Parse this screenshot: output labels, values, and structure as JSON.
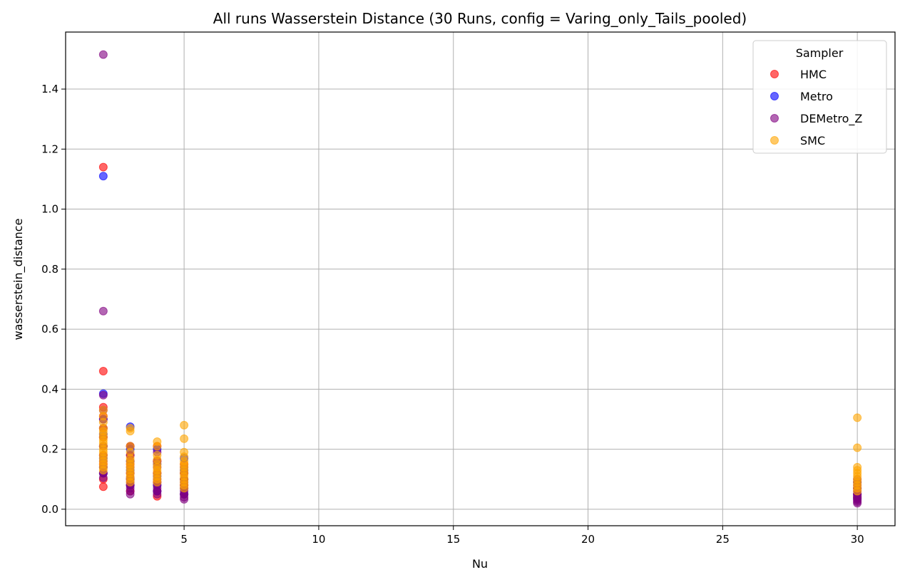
{
  "chart_data": {
    "type": "scatter",
    "title": "All runs Wasserstein Distance (30 Runs, config = Varing_only_Tails_pooled)",
    "xlabel": "Nu",
    "ylabel": "wasserstein_distance",
    "xlim": [
      0.6,
      31.4
    ],
    "ylim": [
      -0.055,
      1.59
    ],
    "xticks": [
      5,
      10,
      15,
      20,
      25,
      30
    ],
    "yticks": [
      0.0,
      0.2,
      0.4,
      0.6,
      0.8,
      1.0,
      1.2,
      1.4
    ],
    "ytick_labels": [
      "0.0",
      "0.2",
      "0.4",
      "0.6",
      "0.8",
      "1.0",
      "1.2",
      "1.4"
    ],
    "grid": true,
    "legend": {
      "title": "Sampler",
      "placement": "upper-right"
    },
    "series": [
      {
        "name": "HMC",
        "color": "#ff0000",
        "points": [
          [
            2,
            1.14
          ],
          [
            2,
            0.46
          ],
          [
            2,
            0.34
          ],
          [
            2,
            0.31
          ],
          [
            2,
            0.27
          ],
          [
            2,
            0.24
          ],
          [
            2,
            0.21
          ],
          [
            2,
            0.18
          ],
          [
            2,
            0.15
          ],
          [
            2,
            0.12
          ],
          [
            2,
            0.1
          ],
          [
            2,
            0.075
          ],
          [
            3,
            0.21
          ],
          [
            3,
            0.18
          ],
          [
            3,
            0.15
          ],
          [
            3,
            0.12
          ],
          [
            3,
            0.1
          ],
          [
            3,
            0.08
          ],
          [
            3,
            0.06
          ],
          [
            4,
            0.21
          ],
          [
            4,
            0.16
          ],
          [
            4,
            0.12
          ],
          [
            4,
            0.09
          ],
          [
            4,
            0.06
          ],
          [
            4,
            0.043
          ],
          [
            5,
            0.15
          ],
          [
            5,
            0.12
          ],
          [
            5,
            0.1
          ],
          [
            5,
            0.08
          ],
          [
            5,
            0.05
          ],
          [
            30,
            0.09
          ],
          [
            30,
            0.07
          ],
          [
            30,
            0.05
          ],
          [
            30,
            0.04
          ]
        ]
      },
      {
        "name": "Metro",
        "color": "#0000ff",
        "points": [
          [
            2,
            1.11
          ],
          [
            2,
            0.385
          ],
          [
            2,
            0.3
          ],
          [
            2,
            0.25
          ],
          [
            2,
            0.21
          ],
          [
            2,
            0.17
          ],
          [
            2,
            0.14
          ],
          [
            2,
            0.12
          ],
          [
            3,
            0.275
          ],
          [
            3,
            0.2
          ],
          [
            3,
            0.16
          ],
          [
            3,
            0.13
          ],
          [
            3,
            0.1
          ],
          [
            3,
            0.08
          ],
          [
            4,
            0.2
          ],
          [
            4,
            0.15
          ],
          [
            4,
            0.11
          ],
          [
            4,
            0.08
          ],
          [
            4,
            0.06
          ],
          [
            5,
            0.17
          ],
          [
            5,
            0.13
          ],
          [
            5,
            0.1
          ],
          [
            5,
            0.07
          ],
          [
            5,
            0.05
          ],
          [
            30,
            0.09
          ],
          [
            30,
            0.07
          ],
          [
            30,
            0.05
          ],
          [
            30,
            0.035
          ]
        ]
      },
      {
        "name": "DEMetro_Z",
        "color": "#800080",
        "points": [
          [
            2,
            1.515
          ],
          [
            2,
            0.66
          ],
          [
            2,
            0.38
          ],
          [
            2,
            0.33
          ],
          [
            2,
            0.3
          ],
          [
            2,
            0.27
          ],
          [
            2,
            0.24
          ],
          [
            2,
            0.21
          ],
          [
            2,
            0.18
          ],
          [
            2,
            0.16
          ],
          [
            2,
            0.14
          ],
          [
            2,
            0.12
          ],
          [
            2,
            0.105
          ],
          [
            3,
            0.21
          ],
          [
            3,
            0.18
          ],
          [
            3,
            0.16
          ],
          [
            3,
            0.14
          ],
          [
            3,
            0.12
          ],
          [
            3,
            0.105
          ],
          [
            3,
            0.09
          ],
          [
            3,
            0.08
          ],
          [
            3,
            0.07
          ],
          [
            3,
            0.06
          ],
          [
            3,
            0.05
          ],
          [
            4,
            0.19
          ],
          [
            4,
            0.16
          ],
          [
            4,
            0.14
          ],
          [
            4,
            0.12
          ],
          [
            4,
            0.1
          ],
          [
            4,
            0.09
          ],
          [
            4,
            0.08
          ],
          [
            4,
            0.07
          ],
          [
            4,
            0.06
          ],
          [
            4,
            0.05
          ],
          [
            5,
            0.14
          ],
          [
            5,
            0.12
          ],
          [
            5,
            0.1
          ],
          [
            5,
            0.09
          ],
          [
            5,
            0.08
          ],
          [
            5,
            0.07
          ],
          [
            5,
            0.06
          ],
          [
            5,
            0.05
          ],
          [
            5,
            0.04
          ],
          [
            5,
            0.033
          ],
          [
            30,
            0.1
          ],
          [
            30,
            0.08
          ],
          [
            30,
            0.07
          ],
          [
            30,
            0.06
          ],
          [
            30,
            0.05
          ],
          [
            30,
            0.045
          ],
          [
            30,
            0.04
          ],
          [
            30,
            0.035
          ],
          [
            30,
            0.03
          ],
          [
            30,
            0.025
          ],
          [
            30,
            0.02
          ]
        ]
      },
      {
        "name": "SMC",
        "color": "#ffa500",
        "points": [
          [
            2,
            0.33
          ],
          [
            2,
            0.31
          ],
          [
            2,
            0.29
          ],
          [
            2,
            0.27
          ],
          [
            2,
            0.26
          ],
          [
            2,
            0.25
          ],
          [
            2,
            0.24
          ],
          [
            2,
            0.23
          ],
          [
            2,
            0.22
          ],
          [
            2,
            0.21
          ],
          [
            2,
            0.2
          ],
          [
            2,
            0.19
          ],
          [
            2,
            0.18
          ],
          [
            2,
            0.17
          ],
          [
            2,
            0.16
          ],
          [
            2,
            0.15
          ],
          [
            2,
            0.14
          ],
          [
            2,
            0.13
          ],
          [
            3,
            0.27
          ],
          [
            3,
            0.26
          ],
          [
            3,
            0.21
          ],
          [
            3,
            0.19
          ],
          [
            3,
            0.17
          ],
          [
            3,
            0.16
          ],
          [
            3,
            0.15
          ],
          [
            3,
            0.14
          ],
          [
            3,
            0.13
          ],
          [
            3,
            0.12
          ],
          [
            3,
            0.11
          ],
          [
            3,
            0.1
          ],
          [
            3,
            0.09
          ],
          [
            4,
            0.225
          ],
          [
            4,
            0.21
          ],
          [
            4,
            0.18
          ],
          [
            4,
            0.165
          ],
          [
            4,
            0.15
          ],
          [
            4,
            0.14
          ],
          [
            4,
            0.13
          ],
          [
            4,
            0.12
          ],
          [
            4,
            0.11
          ],
          [
            4,
            0.1
          ],
          [
            4,
            0.09
          ],
          [
            5,
            0.28
          ],
          [
            5,
            0.235
          ],
          [
            5,
            0.19
          ],
          [
            5,
            0.175
          ],
          [
            5,
            0.16
          ],
          [
            5,
            0.15
          ],
          [
            5,
            0.14
          ],
          [
            5,
            0.13
          ],
          [
            5,
            0.12
          ],
          [
            5,
            0.11
          ],
          [
            5,
            0.1
          ],
          [
            5,
            0.09
          ],
          [
            5,
            0.08
          ],
          [
            5,
            0.07
          ],
          [
            30,
            0.305
          ],
          [
            30,
            0.205
          ],
          [
            30,
            0.14
          ],
          [
            30,
            0.13
          ],
          [
            30,
            0.12
          ],
          [
            30,
            0.11
          ],
          [
            30,
            0.1
          ],
          [
            30,
            0.09
          ],
          [
            30,
            0.08
          ],
          [
            30,
            0.07
          ],
          [
            30,
            0.06
          ]
        ]
      }
    ]
  }
}
